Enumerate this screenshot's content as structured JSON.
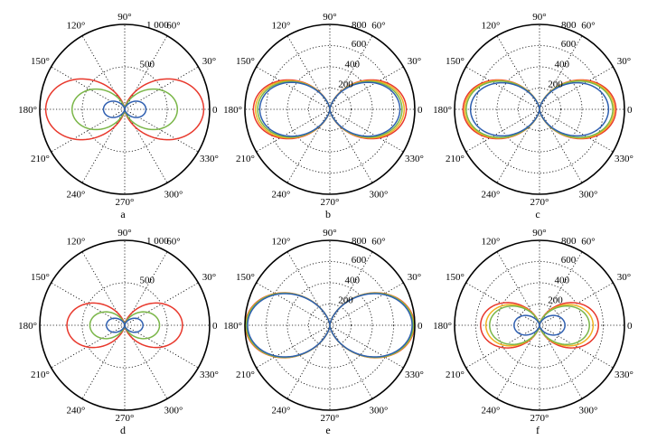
{
  "colors": {
    "red": "#e8382c",
    "green": "#7ab648",
    "yellow": "#f0b323",
    "blue": "#2f5fb0"
  },
  "chart_data": [
    {
      "type": "polar",
      "panel_label": "a",
      "r_max": 1000,
      "r_ticks": [
        {
          "value": 500,
          "label": "500"
        },
        {
          "value": 1000,
          "label": "1 000"
        }
      ],
      "angle_labels": [
        "0",
        "30°",
        "60°",
        "90°",
        "120°",
        "150°",
        "180°",
        "210°",
        "240°",
        "270°",
        "300°",
        "330°"
      ],
      "shape": "cos^2(theta)",
      "legend": "none",
      "series": [
        {
          "color": "red",
          "peak": 930
        },
        {
          "color": "green",
          "peak": 620
        },
        {
          "color": "blue",
          "peak": 250
        }
      ]
    },
    {
      "type": "polar",
      "panel_label": "b",
      "r_max": 800,
      "r_ticks": [
        {
          "value": 200,
          "label": "200"
        },
        {
          "value": 400,
          "label": "400"
        },
        {
          "value": 600,
          "label": "600"
        },
        {
          "value": 800,
          "label": "800"
        }
      ],
      "angle_labels": [
        "0",
        "30°",
        "60°",
        "90°",
        "120°",
        "150°",
        "180°",
        "210°",
        "240°",
        "270°",
        "300°",
        "330°"
      ],
      "shape": "cos^2(theta)",
      "legend": "none",
      "series": [
        {
          "color": "red",
          "peak": 720
        },
        {
          "color": "yellow",
          "peak": 700
        },
        {
          "color": "green",
          "peak": 680
        },
        {
          "color": "blue",
          "peak": 660
        }
      ]
    },
    {
      "type": "polar",
      "panel_label": "c",
      "r_max": 800,
      "r_ticks": [
        {
          "value": 200,
          "label": "200"
        },
        {
          "value": 400,
          "label": "400"
        },
        {
          "value": 600,
          "label": "600"
        },
        {
          "value": 800,
          "label": "800"
        }
      ],
      "angle_labels": [
        "0",
        "30°",
        "60°",
        "90°",
        "120°",
        "150°",
        "180°",
        "210°",
        "240°",
        "270°",
        "300°",
        "330°"
      ],
      "shape": "cos^2(theta)",
      "legend": "none",
      "series": [
        {
          "color": "red",
          "peak": 720
        },
        {
          "color": "yellow",
          "peak": 705
        },
        {
          "color": "green",
          "peak": 690
        },
        {
          "color": "blue",
          "peak": 650
        }
      ]
    },
    {
      "type": "polar",
      "panel_label": "d",
      "r_max": 1000,
      "r_ticks": [
        {
          "value": 500,
          "label": "500"
        },
        {
          "value": 1000,
          "label": "1 000"
        }
      ],
      "angle_labels": [
        "0",
        "30°",
        "60°",
        "90°",
        "120°",
        "150°",
        "180°",
        "210°",
        "240°",
        "270°",
        "300°",
        "330°"
      ],
      "shape": "cos^2(theta)",
      "legend": "none",
      "series": [
        {
          "color": "red",
          "peak": 680
        },
        {
          "color": "green",
          "peak": 410
        },
        {
          "color": "blue",
          "peak": 215
        }
      ]
    },
    {
      "type": "polar",
      "panel_label": "e",
      "r_max": 800,
      "r_ticks": [
        {
          "value": 200,
          "label": "200"
        },
        {
          "value": 400,
          "label": "400"
        },
        {
          "value": 600,
          "label": "600"
        },
        {
          "value": 800,
          "label": "800"
        }
      ],
      "angle_labels": [
        "0",
        "30°",
        "60°",
        "90°",
        "120°",
        "150°",
        "180°",
        "210°",
        "240°",
        "270°",
        "300°",
        "330°"
      ],
      "shape": "cos^2(theta)",
      "legend": "none",
      "series": [
        {
          "color": "red",
          "peak": 795
        },
        {
          "color": "yellow",
          "peak": 790
        },
        {
          "color": "green",
          "peak": 785
        },
        {
          "color": "blue",
          "peak": 775
        }
      ]
    },
    {
      "type": "polar",
      "panel_label": "f",
      "r_max": 800,
      "r_ticks": [
        {
          "value": 200,
          "label": "200"
        },
        {
          "value": 400,
          "label": "400"
        },
        {
          "value": 600,
          "label": "600"
        },
        {
          "value": 800,
          "label": "800"
        }
      ],
      "angle_labels": [
        "0",
        "30°",
        "60°",
        "90°",
        "120°",
        "150°",
        "180°",
        "210°",
        "240°",
        "270°",
        "300°",
        "330°"
      ],
      "shape": "cos^2(theta)",
      "legend": "none",
      "series": [
        {
          "color": "red",
          "peak": 555
        },
        {
          "color": "yellow",
          "peak": 505
        },
        {
          "color": "green",
          "peak": 470
        },
        {
          "color": "blue",
          "peak": 240
        }
      ]
    }
  ]
}
